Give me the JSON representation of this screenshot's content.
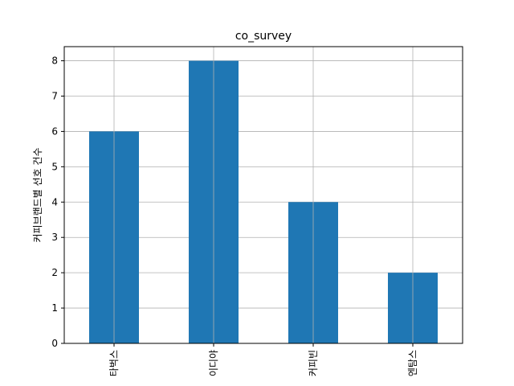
{
  "chart_data": {
    "type": "bar",
    "title": "co_survey",
    "xlabel": "",
    "ylabel": "커피브랜드별 선호 건수",
    "categories": [
      "타벅스",
      "이디야",
      "커피빈",
      "엔탐스"
    ],
    "values": [
      6,
      8,
      4,
      2
    ],
    "ylim": [
      0,
      8.4
    ],
    "yticks": [
      0,
      1,
      2,
      3,
      4,
      5,
      6,
      7,
      8
    ],
    "grid": true,
    "bar_color": "#1f77b4",
    "x_tick_rotation": "vertical"
  }
}
